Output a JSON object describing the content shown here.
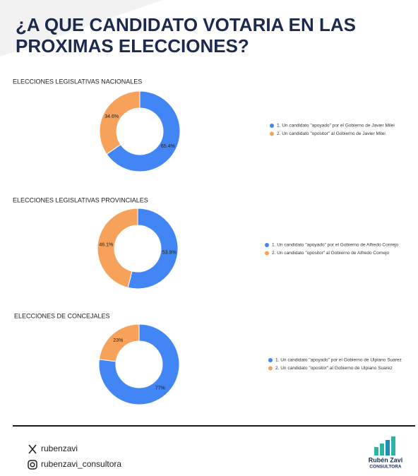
{
  "title": [
    "¿A QUE CANDIDATO VOTARIA EN LAS",
    "PROXIMAS ELECCIONES?"
  ],
  "chart_data": [
    {
      "type": "donut",
      "title": "ELECCIONES LEGISLATIVAS NACIONALES",
      "categories": [
        "1. Un candidato \"apoyado\" por el Gobierno de Javier Milei",
        "2. Un candidato \"opositor\" al Gobierno de Javier Milei"
      ],
      "values": [
        65.4,
        34.6
      ],
      "value_labels": [
        "65.4%",
        "34.6%"
      ],
      "colors": [
        "#4285f4",
        "#f6a25a"
      ]
    },
    {
      "type": "donut",
      "title": "ELECCIONES LEGISLATIVAS PROVINCIALES",
      "categories": [
        "1. Un candidato \"apoyado\" por el Gobierno de Alfredo Cornejo",
        "2. Un candidato \"opositor\" al Gobierno de Alfredo Cornejo"
      ],
      "values": [
        53.9,
        46.1
      ],
      "value_labels": [
        "53.9%",
        "46.1%"
      ],
      "colors": [
        "#4285f4",
        "#f6a25a"
      ]
    },
    {
      "type": "donut",
      "title": "ELECCIONES DE CONCEJALES",
      "categories": [
        "1. Un candidato \"apoyado\" por el Gobierno de Ulpiano Suarez",
        "2. Un candidato \"opositor\" al Gobierno de Ulpiano Suarez"
      ],
      "values": [
        77,
        23
      ],
      "value_labels": [
        "77%",
        "23%"
      ],
      "colors": [
        "#4285f4",
        "#f6a25a"
      ]
    }
  ],
  "footer": {
    "x_handle": "rubenzavi",
    "instagram_handle": "rubenzavi_consultora",
    "logo_name": "Rubén Zavi",
    "logo_sub": "CONSULTORA"
  }
}
